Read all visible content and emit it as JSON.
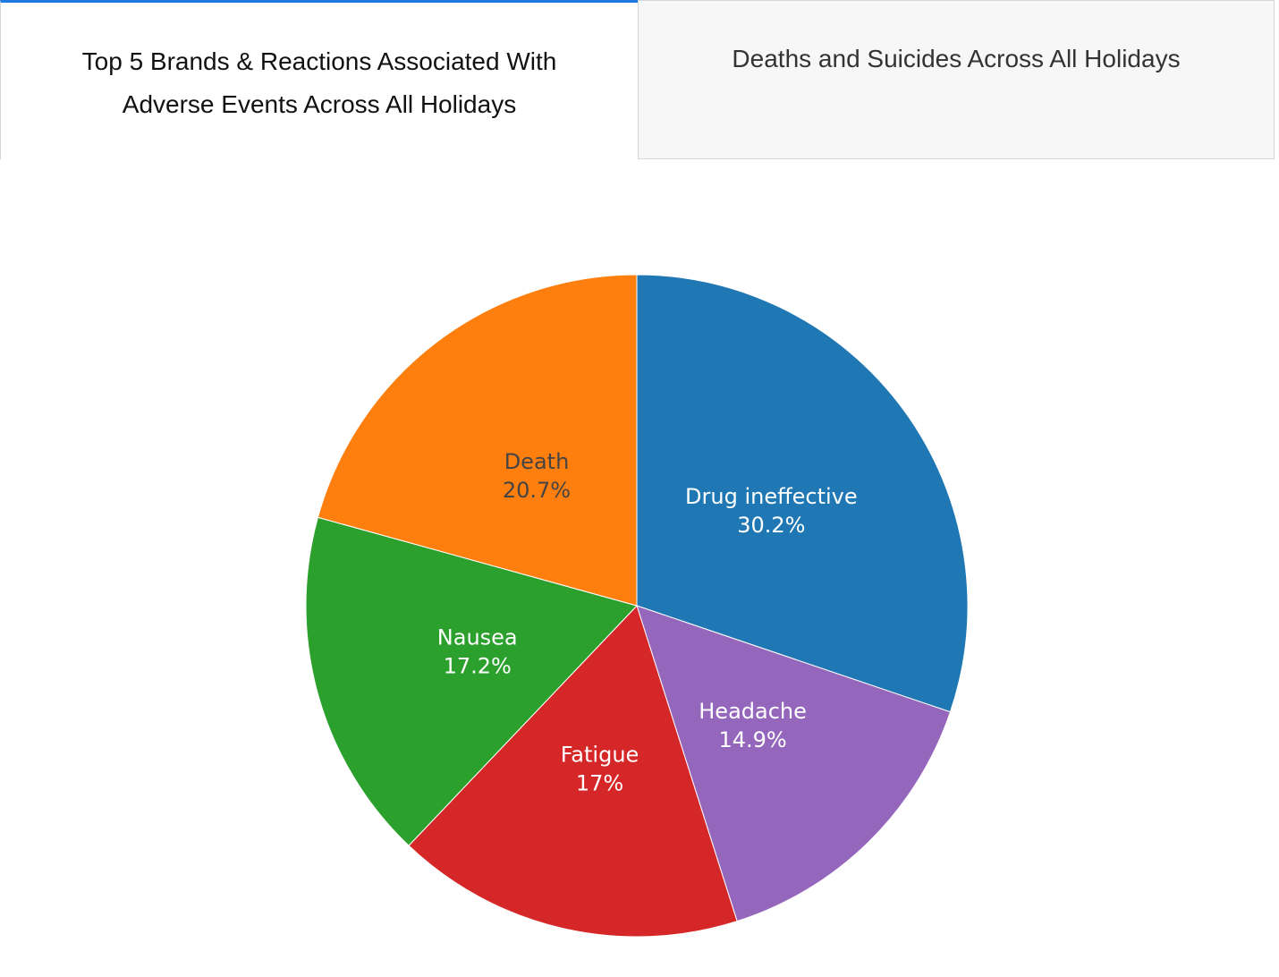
{
  "tabs": [
    {
      "label": "Top 5 Brands & Reactions Associated With Adverse Events Across All Holidays",
      "active": true
    },
    {
      "label": "Deaths and Suicides Across All Holidays",
      "active": false
    }
  ],
  "chart_data": {
    "type": "pie",
    "title": "",
    "categories": [
      "Drug ineffective",
      "Headache",
      "Fatigue",
      "Nausea",
      "Death"
    ],
    "values": [
      30.2,
      14.9,
      17,
      17.2,
      20.7
    ],
    "value_labels": [
      "30.2%",
      "14.9%",
      "17%",
      "17.2%",
      "20.7%"
    ],
    "colors": [
      "#1f77b4",
      "#9467bd",
      "#d62728",
      "#2ca02c",
      "#ff7f0e"
    ],
    "label_colors": [
      "#ffffff",
      "#ffffff",
      "#ffffff",
      "#ffffff",
      "#444444"
    ],
    "legend": "none",
    "direction": "clockwise",
    "start": "top"
  }
}
